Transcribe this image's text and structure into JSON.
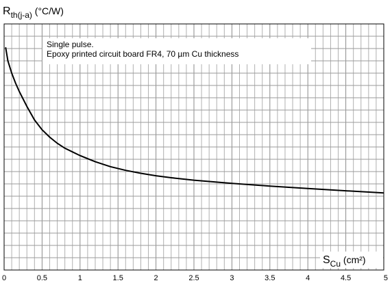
{
  "chart_data": {
    "type": "line",
    "annotation_lines": [
      "Single pulse.",
      "Epoxy printed circuit board FR4, 70 µm Cu thickness"
    ],
    "ylabel": {
      "main": "R",
      "sub": "th(j-a)",
      "unit": " (°C/W)"
    },
    "xlabel": {
      "main": "S",
      "sub": "Cu",
      "unit": " (cm²)"
    },
    "xlim": [
      0,
      5
    ],
    "x_ticks": [
      "0",
      "0.5",
      "1",
      "1.5",
      "2",
      "2.5",
      "3",
      "3.5",
      "4",
      "4.5",
      "5"
    ],
    "y_tick_labels": [],
    "grid": true,
    "series": [
      {
        "x": [
          0.02,
          0.05,
          0.1,
          0.15,
          0.2,
          0.3,
          0.4,
          0.5,
          0.6,
          0.7,
          0.8,
          0.9,
          1.0,
          1.2,
          1.4,
          1.6,
          1.8,
          2.0,
          2.2,
          2.5,
          3.0,
          3.5,
          4.0,
          4.5,
          5.0
        ],
        "y": [
          0.905,
          0.85,
          0.8,
          0.76,
          0.725,
          0.665,
          0.61,
          0.57,
          0.54,
          0.515,
          0.495,
          0.48,
          0.465,
          0.44,
          0.42,
          0.405,
          0.393,
          0.383,
          0.375,
          0.365,
          0.352,
          0.341,
          0.331,
          0.322,
          0.313
        ]
      }
    ]
  }
}
